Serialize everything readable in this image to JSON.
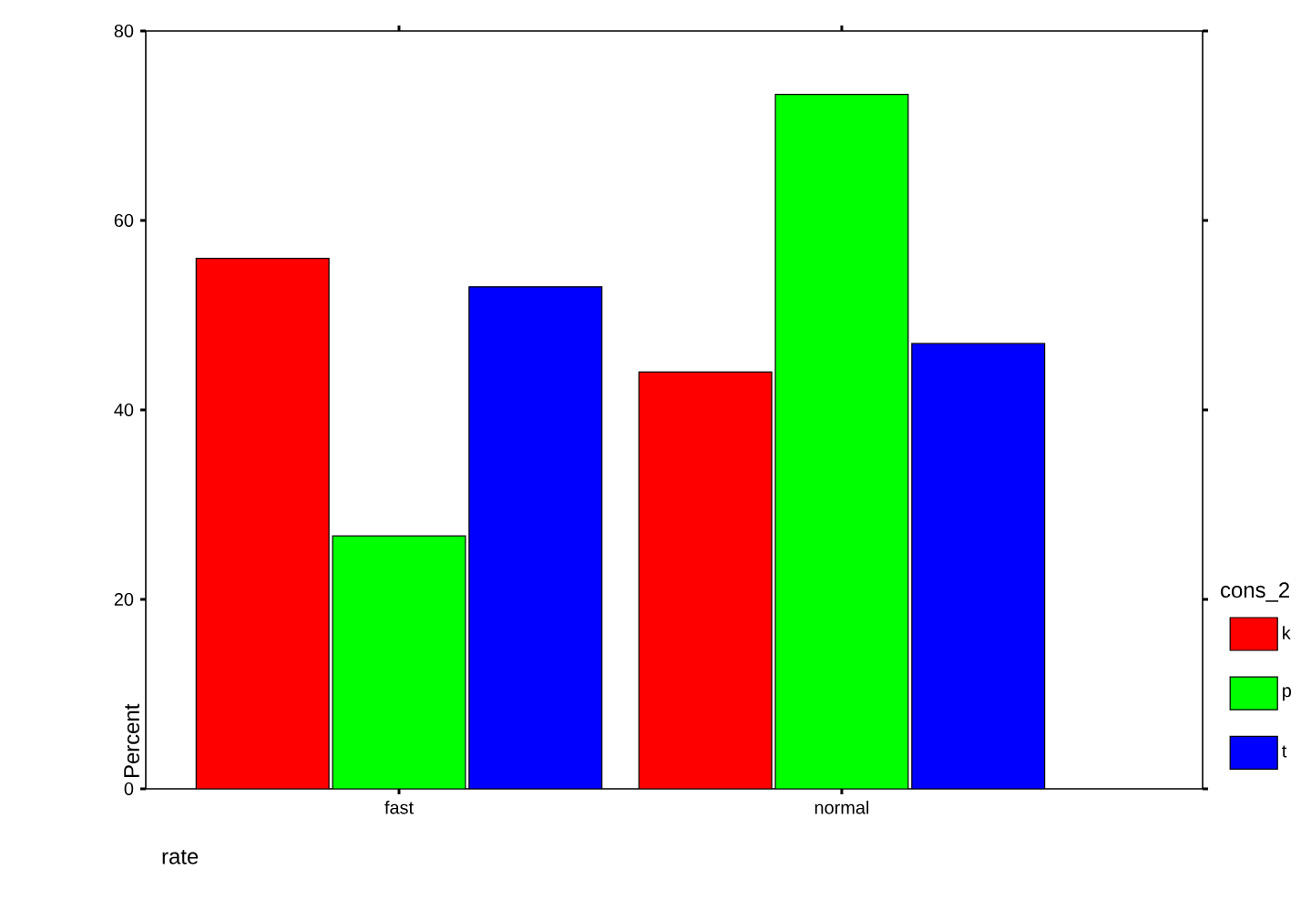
{
  "chart_data": {
    "type": "bar",
    "xlabel": "rate",
    "ylabel": "Percent",
    "legend_title": "cons_2",
    "categories": [
      "fast",
      "normal"
    ],
    "series": [
      {
        "name": "k",
        "color": "#ff0000",
        "values": [
          56,
          44
        ]
      },
      {
        "name": "p",
        "color": "#00ff00",
        "values": [
          26.7,
          73.3
        ]
      },
      {
        "name": "t",
        "color": "#0000ff",
        "values": [
          53,
          47
        ]
      }
    ],
    "ylim": [
      0,
      80
    ],
    "yticks": [
      0,
      20,
      40,
      60,
      80
    ],
    "legend": "right"
  }
}
